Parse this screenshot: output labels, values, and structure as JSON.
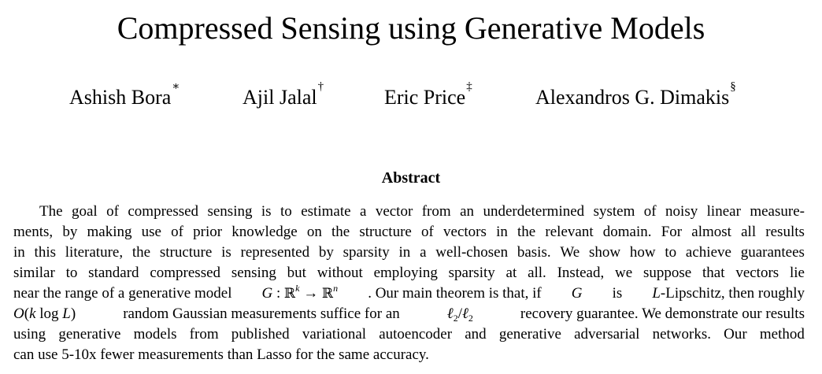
{
  "paper": {
    "title": "Compressed Sensing using Generative Models",
    "authors": [
      {
        "name": "Ashish Bora",
        "mark": "∗"
      },
      {
        "name": "Ajil Jalal",
        "mark": "†"
      },
      {
        "name": "Eric Price",
        "mark": "‡"
      },
      {
        "name": "Alexandros G. Dimakis",
        "mark": "§"
      }
    ],
    "abstract_heading": "Abstract",
    "abstract_lines": [
      "The goal of compressed sensing is to estimate a vector from an underdetermined system of noisy linear measure-",
      "ments, by making use of prior knowledge on the structure of vectors in the relevant domain. For almost all results",
      "in this literature, the structure is represented by sparsity in a well-chosen basis. We show how to achieve guarantees",
      "similar to standard compressed sensing but without employing sparsity at all. Instead, we suppose that vectors lie",
      "",
      "",
      "using generative models from published variational autoencoder and generative adversarial networks. Our method",
      "can use 5-10x fewer measurements than Lasso for the same accuracy."
    ],
    "line5": {
      "pre": "near the range of a generative model",
      "mid": ". Our main theorem is that, if",
      "g": "G",
      "is": "is",
      "l": "L",
      "post": "-Lipschitz, then roughly"
    },
    "line6": {
      "pre_math": "O(k log L)",
      "mid": "random Gaussian measurements suffice for an",
      "post": "recovery guarantee. We demonstrate our results"
    }
  }
}
